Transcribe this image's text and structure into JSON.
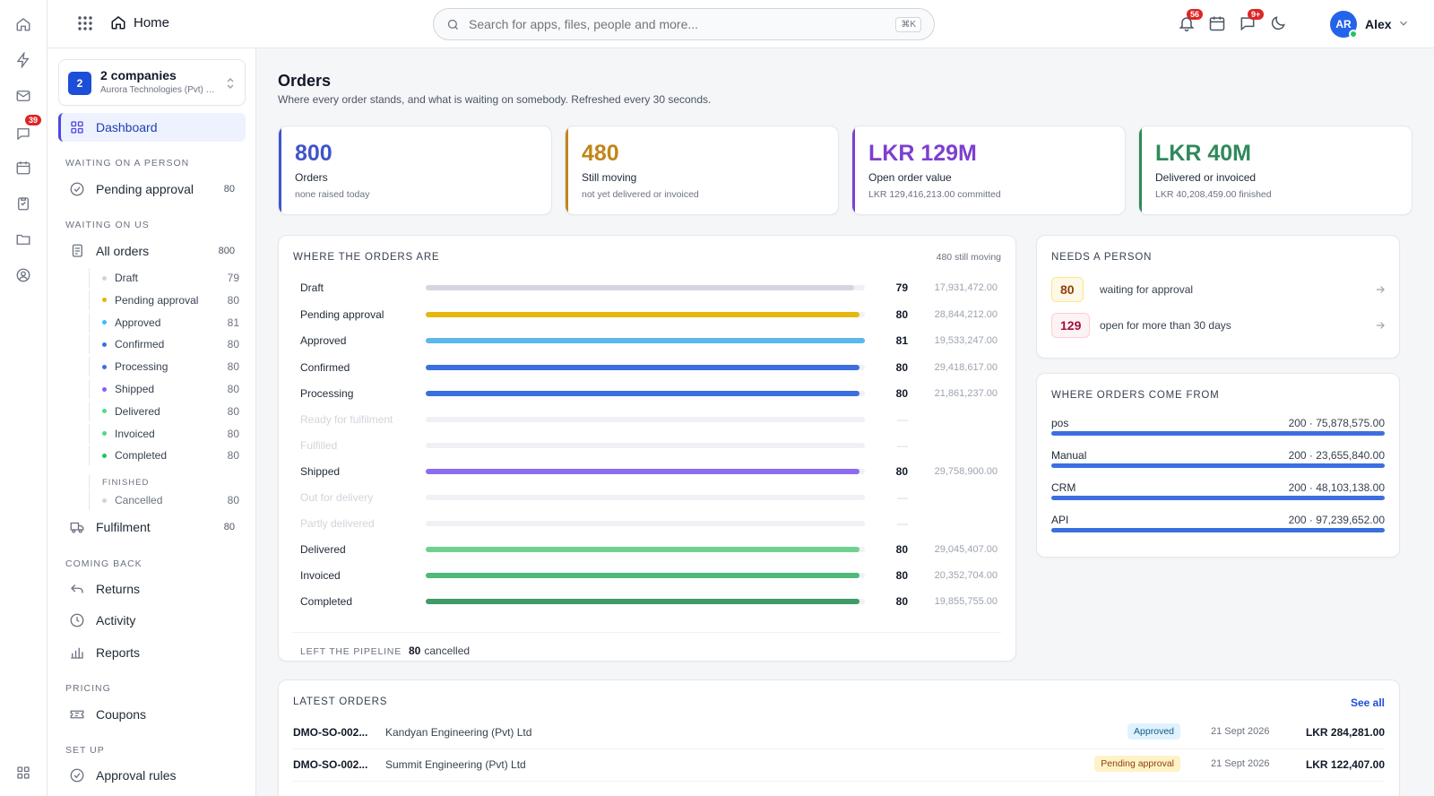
{
  "rail": {
    "badge": "39"
  },
  "topbar": {
    "home_label": "Home",
    "search_placeholder": "Search for apps, files, people and more...",
    "search_shortcut": "⌘K",
    "notif_badge": "56",
    "messages_badge": "9+",
    "avatar_initials": "AR",
    "user_name": "Alex"
  },
  "sidebar": {
    "company_count": "2",
    "company_name": "2 companies",
    "company_sub": "Aurora Technologies (Pvt) Ltd",
    "dashboard": "Dashboard",
    "sec_waiting_person": "WAITING ON A PERSON",
    "pending_approval": "Pending approval",
    "pending_approval_count": "80",
    "sec_waiting_us": "WAITING ON US",
    "all_orders": "All orders",
    "all_orders_count": "800",
    "statuses": [
      {
        "label": "Draft",
        "count": "79",
        "color": "#d1d5db"
      },
      {
        "label": "Pending approval",
        "count": "80",
        "color": "#eab308"
      },
      {
        "label": "Approved",
        "count": "81",
        "color": "#38bdf8"
      },
      {
        "label": "Confirmed",
        "count": "80",
        "color": "#3b6fe0"
      },
      {
        "label": "Processing",
        "count": "80",
        "color": "#3b6fe0"
      },
      {
        "label": "Shipped",
        "count": "80",
        "color": "#8b5cf6"
      },
      {
        "label": "Delivered",
        "count": "80",
        "color": "#4ade80"
      },
      {
        "label": "Invoiced",
        "count": "80",
        "color": "#4ade80"
      },
      {
        "label": "Completed",
        "count": "80",
        "color": "#22c55e"
      }
    ],
    "finished_label": "FINISHED",
    "cancelled_label": "Cancelled",
    "cancelled_count": "80",
    "fulfilment": "Fulfilment",
    "fulfilment_count": "80",
    "sec_coming_back": "COMING BACK",
    "returns": "Returns",
    "activity": "Activity",
    "reports": "Reports",
    "sec_pricing": "PRICING",
    "coupons": "Coupons",
    "sec_setup": "SET UP",
    "approval_rules": "Approval rules"
  },
  "page": {
    "title": "Orders",
    "subtitle": "Where every order stands, and what is waiting on somebody. Refreshed every 30 seconds."
  },
  "kpis": [
    {
      "value": "800",
      "label": "Orders",
      "note": "none raised today",
      "color": "#4054c9"
    },
    {
      "value": "480",
      "label": "Still moving",
      "note": "not yet delivered or invoiced",
      "color": "#c2851a"
    },
    {
      "value": "LKR 129M",
      "label": "Open order value",
      "note": "LKR 129,416,213.00 committed",
      "color": "#7e3fcf"
    },
    {
      "value": "LKR 40M",
      "label": "Delivered or invoiced",
      "note": "LKR 40,208,459.00 finished",
      "color": "#2f8a5a"
    }
  ],
  "pipeline": {
    "title": "WHERE THE ORDERS ARE",
    "right_note": "480 still moving",
    "rows": [
      {
        "label": "Draft",
        "count": "79",
        "value": "17,931,472.00",
        "fraction": 0.975,
        "color": "#d4d7e3"
      },
      {
        "label": "Pending approval",
        "count": "80",
        "value": "28,844,212.00",
        "fraction": 0.988,
        "color": "#e6b80b"
      },
      {
        "label": "Approved",
        "count": "81",
        "value": "19,533,247.00",
        "fraction": 1.0,
        "color": "#5bb8ef"
      },
      {
        "label": "Confirmed",
        "count": "80",
        "value": "29,418,617.00",
        "fraction": 0.988,
        "color": "#3b6fe0"
      },
      {
        "label": "Processing",
        "count": "80",
        "value": "21,861,237.00",
        "fraction": 0.988,
        "color": "#3b6fe0"
      },
      {
        "label": "Ready for fulfilment",
        "count": "—",
        "value": "",
        "fraction": 0,
        "color": "#e5e7eb"
      },
      {
        "label": "Fulfilled",
        "count": "—",
        "value": "",
        "fraction": 0,
        "color": "#e5e7eb"
      },
      {
        "label": "Shipped",
        "count": "80",
        "value": "29,758,900.00",
        "fraction": 0.988,
        "color": "#8b6cf0"
      },
      {
        "label": "Out for delivery",
        "count": "—",
        "value": "",
        "fraction": 0,
        "color": "#e5e7eb"
      },
      {
        "label": "Partly delivered",
        "count": "—",
        "value": "",
        "fraction": 0,
        "color": "#e5e7eb"
      },
      {
        "label": "Delivered",
        "count": "80",
        "value": "29,045,407.00",
        "fraction": 0.988,
        "color": "#6fd18e"
      },
      {
        "label": "Invoiced",
        "count": "80",
        "value": "20,352,704.00",
        "fraction": 0.988,
        "color": "#4fb97a"
      },
      {
        "label": "Completed",
        "count": "80",
        "value": "19,855,755.00",
        "fraction": 0.988,
        "color": "#3f9a66"
      }
    ],
    "left_label": "LEFT THE PIPELINE",
    "left_count": "80",
    "left_text": "cancelled"
  },
  "needs": {
    "title": "NEEDS A PERSON",
    "items": [
      {
        "count": "80",
        "text": "waiting for approval",
        "bg": "#fef9e7",
        "fg": "#92400e",
        "border": "#fde68a"
      },
      {
        "count": "129",
        "text": "open for more than 30 days",
        "bg": "#fdf2f4",
        "fg": "#9f1239",
        "border": "#fecdd3"
      }
    ]
  },
  "sources": {
    "title": "WHERE ORDERS COME FROM",
    "items": [
      {
        "label": "pos",
        "value": "200 · 75,878,575.00",
        "fraction": 1.0
      },
      {
        "label": "Manual",
        "value": "200 · 23,655,840.00",
        "fraction": 1.0
      },
      {
        "label": "CRM",
        "value": "200 · 48,103,138.00",
        "fraction": 1.0
      },
      {
        "label": "API",
        "value": "200 · 97,239,652.00",
        "fraction": 1.0
      }
    ]
  },
  "latest": {
    "title": "LATEST ORDERS",
    "see_all": "See all",
    "rows": [
      {
        "id": "DMO-SO-002...",
        "customer": "Kandyan Engineering (Pvt) Ltd",
        "status": "Approved",
        "status_bg": "#e0f2fe",
        "status_fg": "#0c5a8a",
        "date": "21 Sept 2026",
        "amount": "LKR 284,281.00"
      },
      {
        "id": "DMO-SO-002...",
        "customer": "Summit Engineering (Pvt) Ltd",
        "status": "Pending approval",
        "status_bg": "#fef3c7",
        "status_fg": "#92400e",
        "date": "21 Sept 2026",
        "amount": "LKR 122,407.00"
      }
    ]
  }
}
